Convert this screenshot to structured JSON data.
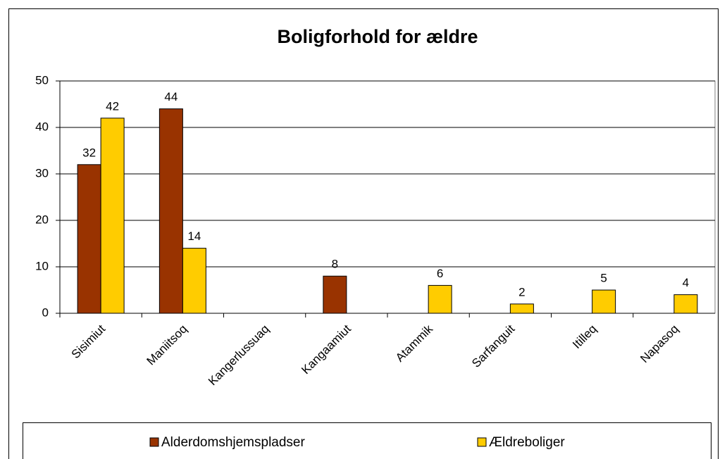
{
  "chart_data": {
    "type": "bar",
    "title": "Boligforhold for ældre",
    "categories": [
      "Sisimiut",
      "Maniitsoq",
      "Kangerlussuaq",
      "Kangaamiut",
      "Atammik",
      "Sarfanguit",
      "Itilleq",
      "Napasoq"
    ],
    "series": [
      {
        "name": "Alderdomshjemspladser",
        "color": "#993300",
        "values": [
          32,
          44,
          null,
          8,
          null,
          null,
          null,
          null
        ]
      },
      {
        "name": "Ældreboliger",
        "color": "#ffcc00",
        "values": [
          42,
          14,
          null,
          null,
          6,
          2,
          5,
          4
        ]
      }
    ],
    "ylim": [
      0,
      50
    ],
    "yticks": [
      0,
      10,
      20,
      30,
      40,
      50
    ],
    "grid": true,
    "legend": "bottom"
  }
}
